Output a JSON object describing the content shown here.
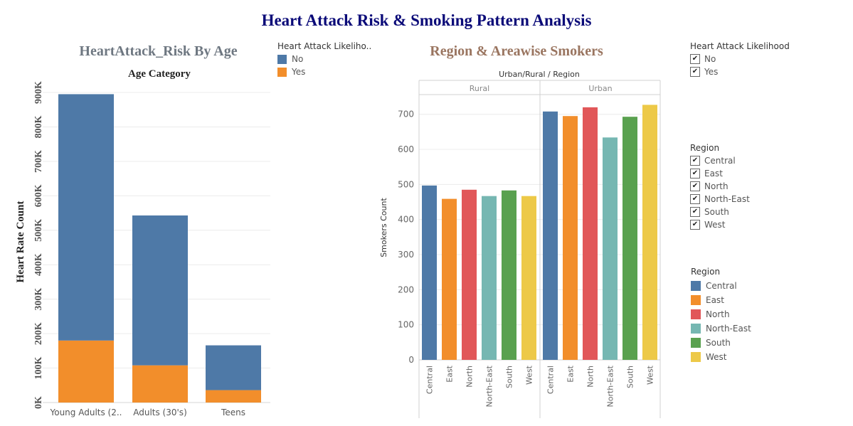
{
  "title": "Heart Attack Risk & Smoking Pattern Analysis",
  "chart_data": [
    {
      "type": "bar",
      "stacked": true,
      "title": "HeartAttack_Risk By Age",
      "subtitle": "Age Category",
      "xlabel": "",
      "ylabel": "Heart Rate Count",
      "categories": [
        "Young Adults (2..",
        "Adults (30's)",
        "Teens"
      ],
      "series": [
        {
          "name": "Yes",
          "color": "#f28e2b",
          "values": [
            180000,
            108000,
            36000
          ]
        },
        {
          "name": "No",
          "color": "#4e79a7",
          "values": [
            715000,
            435000,
            130000
          ]
        }
      ],
      "ylim": [
        0,
        900000
      ],
      "yticks": [
        0,
        100000,
        200000,
        300000,
        400000,
        500000,
        600000,
        700000,
        800000,
        900000
      ],
      "ytick_labels": [
        "0K",
        "100K",
        "200K",
        "300K",
        "400K",
        "500K",
        "600K",
        "700K",
        "800K",
        "900K"
      ],
      "grid": true,
      "legend": {
        "title": "Heart Attack Likeliho..",
        "items": [
          {
            "label": "No",
            "color": "#4e79a7"
          },
          {
            "label": "Yes",
            "color": "#f28e2b"
          }
        ],
        "position": "right"
      }
    },
    {
      "type": "bar",
      "title": "Region & Areawise Smokers",
      "subtitle": "Urban/Rural / Region",
      "xlabel": "",
      "ylabel": "Smokers Count",
      "panels": [
        {
          "name": "Rural",
          "categories": [
            "Central",
            "East",
            "North",
            "North-East",
            "South",
            "West"
          ],
          "values": [
            497,
            459,
            485,
            467,
            483,
            467
          ]
        },
        {
          "name": "Urban",
          "categories": [
            "Central",
            "East",
            "North",
            "North-East",
            "South",
            "West"
          ],
          "values": [
            708,
            695,
            720,
            634,
            693,
            727
          ]
        }
      ],
      "colors": {
        "Central": "#4e79a7",
        "East": "#f28e2b",
        "North": "#e15759",
        "North-East": "#76b7b2",
        "South": "#59a14f",
        "West": "#edc948"
      },
      "ylim": [
        0,
        740
      ],
      "yticks": [
        0,
        100,
        200,
        300,
        400,
        500,
        600,
        700
      ],
      "ytick_labels": [
        "0",
        "100",
        "200",
        "300",
        "400",
        "500",
        "600",
        "700"
      ],
      "grid": true
    }
  ],
  "filters": {
    "likelihood": {
      "title": "Heart Attack Likelihood",
      "items": [
        "No",
        "Yes"
      ]
    },
    "region": {
      "title": "Region",
      "items": [
        "Central",
        "East",
        "North",
        "North-East",
        "South",
        "West"
      ]
    }
  },
  "region_legend": {
    "title": "Region",
    "items": [
      {
        "label": "Central",
        "color": "#4e79a7"
      },
      {
        "label": "East",
        "color": "#f28e2b"
      },
      {
        "label": "North",
        "color": "#e15759"
      },
      {
        "label": "North-East",
        "color": "#76b7b2"
      },
      {
        "label": "South",
        "color": "#59a14f"
      },
      {
        "label": "West",
        "color": "#edc948"
      }
    ]
  },
  "checkmark": "✔"
}
